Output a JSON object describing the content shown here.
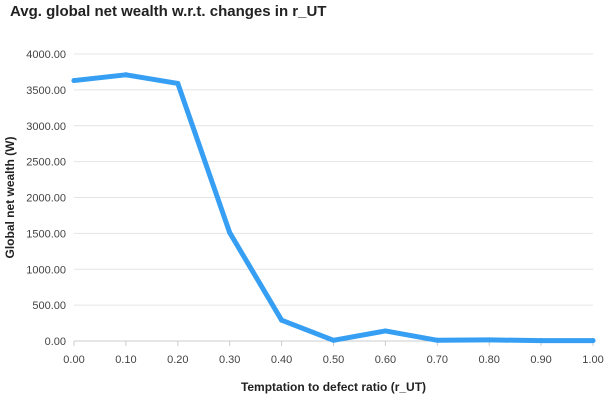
{
  "chart_data": {
    "type": "line",
    "title": "Avg. global net wealth w.r.t. changes in r_UT",
    "xlabel": "Temptation to defect ratio (r_UT)",
    "ylabel": "Global net wealth (W)",
    "x": [
      0.0,
      0.1,
      0.2,
      0.3,
      0.4,
      0.5,
      0.6,
      0.7,
      0.8,
      0.9,
      1.0
    ],
    "x_tick_labels": [
      "0.00",
      "0.10",
      "0.20",
      "0.30",
      "0.40",
      "0.50",
      "0.60",
      "0.70",
      "0.80",
      "0.90",
      "1.00"
    ],
    "y_tick_values": [
      0,
      500,
      1000,
      1500,
      2000,
      2500,
      3000,
      3500,
      4000
    ],
    "y_tick_labels": [
      "0.00",
      "500.00",
      "1000.00",
      "1500.00",
      "2000.00",
      "2500.00",
      "3000.00",
      "3500.00",
      "4000.00"
    ],
    "xlim": [
      0.0,
      1.0
    ],
    "ylim": [
      0,
      4000
    ],
    "grid": "horizontal",
    "legend": "none",
    "series": [
      {
        "values": [
          3630,
          3710,
          3590,
          1510,
          290,
          10,
          140,
          10,
          15,
          5,
          5
        ],
        "color": "#369ff3"
      }
    ],
    "colors": {
      "line": "#369ff3",
      "grid": "#e4e4e4",
      "axis": "#cccccc",
      "text": "#444444",
      "title": "#222222"
    }
  }
}
